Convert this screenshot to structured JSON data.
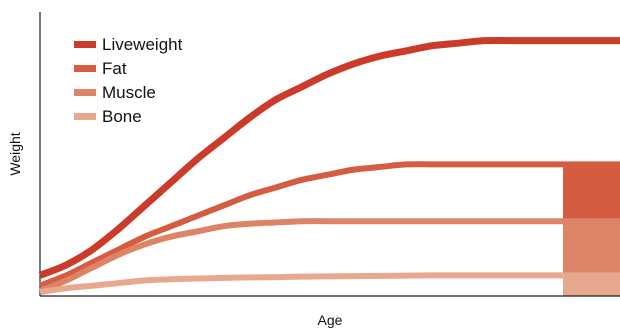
{
  "chart_data": {
    "type": "area",
    "title": "",
    "xlabel": "Age",
    "ylabel": "Weight",
    "xlim": [
      0,
      100
    ],
    "ylim": [
      0,
      100
    ],
    "grid": false,
    "legend_position": "top-left",
    "series": [
      {
        "name": "Liveweight",
        "color": "#CC3A2A",
        "x": [
          0,
          5,
          10,
          15,
          20,
          25,
          30,
          35,
          40,
          45,
          50,
          55,
          60,
          65,
          70,
          75,
          80,
          85,
          90,
          95,
          100
        ],
        "values": [
          8,
          12,
          18,
          26,
          35,
          44,
          53,
          61,
          69,
          76,
          81,
          86,
          90,
          93,
          95,
          97,
          98,
          99,
          99,
          99,
          99
        ]
      },
      {
        "name": "Fat",
        "color": "#D45C40",
        "x": [
          0,
          5,
          10,
          15,
          20,
          25,
          30,
          35,
          40,
          45,
          50,
          55,
          60,
          65,
          70,
          75,
          80,
          85,
          90,
          95,
          100
        ],
        "values": [
          4,
          8,
          13,
          18,
          23,
          27,
          31,
          35,
          39,
          42,
          45,
          47,
          49,
          50,
          51,
          51,
          51,
          51,
          51,
          51,
          51
        ]
      },
      {
        "name": "Muscle",
        "color": "#DD8366",
        "x": [
          0,
          5,
          10,
          15,
          20,
          25,
          30,
          35,
          40,
          45,
          50,
          55,
          60,
          65,
          70,
          75,
          80,
          85,
          90,
          95,
          100
        ],
        "values": [
          2,
          6,
          11,
          16,
          20,
          23,
          25,
          27,
          28,
          28.5,
          29,
          29,
          29,
          29,
          29,
          29,
          29,
          29,
          29,
          29,
          29
        ]
      },
      {
        "name": "Bone",
        "color": "#E8A88E",
        "x": [
          0,
          5,
          10,
          15,
          20,
          25,
          30,
          35,
          40,
          45,
          50,
          55,
          60,
          65,
          70,
          75,
          80,
          85,
          90,
          95,
          100
        ],
        "values": [
          1.5,
          3,
          4,
          5,
          6,
          6.5,
          6.8,
          7,
          7.2,
          7.3,
          7.5,
          7.6,
          7.7,
          7.8,
          7.9,
          8,
          8,
          8,
          8,
          8,
          8
        ]
      }
    ]
  }
}
